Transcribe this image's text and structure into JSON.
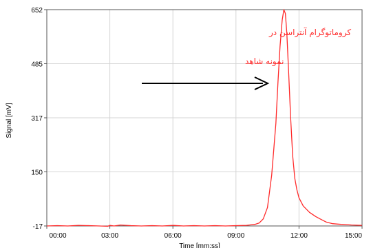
{
  "chart_data": {
    "type": "line",
    "xlabel": "Time [mm:ss]",
    "ylabel": "Signal [mV]",
    "x_tick_labels": [
      "00:00",
      "03:00",
      "06:00",
      "09:00",
      "12:00",
      "15:00"
    ],
    "y_tick_labels": [
      "-17",
      "150",
      "317",
      "485",
      "652"
    ],
    "xlim": [
      0,
      15
    ],
    "ylim": [
      -17,
      652
    ],
    "grid": true,
    "series": [
      {
        "color": "#ff2a2a",
        "x": [
          0,
          0.5,
          1.0,
          1.5,
          2.0,
          2.5,
          2.9,
          3.0,
          3.2,
          3.5,
          4.0,
          4.5,
          5.0,
          5.5,
          6.0,
          6.5,
          7.0,
          7.5,
          8.0,
          8.5,
          9.0,
          9.5,
          9.9,
          10.1,
          10.3,
          10.5,
          10.7,
          10.9,
          11.0,
          11.1,
          11.2,
          11.28,
          11.35,
          11.42,
          11.5,
          11.6,
          11.7,
          11.8,
          11.9,
          12.0,
          12.2,
          12.5,
          12.8,
          13.0,
          13.3,
          13.6,
          14.0,
          14.5,
          15.0
        ],
        "y": [
          -17,
          -16,
          -17,
          -15,
          -16,
          -17,
          -18,
          -15,
          -17,
          -14,
          -16,
          -17,
          -16,
          -17,
          -15,
          -17,
          -16,
          -17,
          -16,
          -17,
          -16,
          -15,
          -12,
          -8,
          5,
          40,
          140,
          300,
          430,
          540,
          620,
          652,
          640,
          580,
          470,
          320,
          200,
          130,
          95,
          70,
          45,
          25,
          12,
          5,
          -5,
          -10,
          -12,
          -14,
          -15
        ]
      }
    ],
    "annotations": [
      {
        "text": "کروماتوگرام   آنتراسن  در",
        "color": "#ff2a2a"
      },
      {
        "text": "نمونه شاهد",
        "color": "#ff2a2a"
      }
    ],
    "arrow": {
      "direction": "right",
      "color": "#000000"
    }
  }
}
